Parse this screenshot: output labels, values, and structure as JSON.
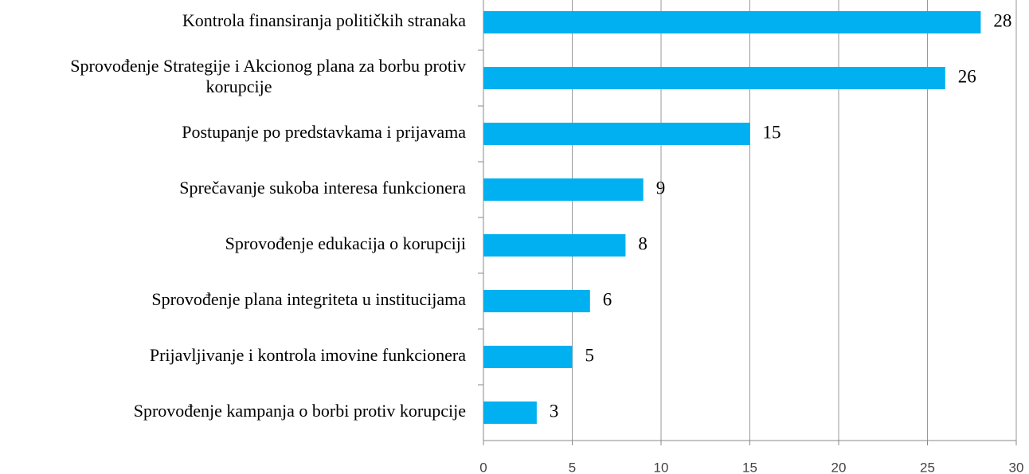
{
  "chart_data": {
    "type": "barh",
    "categories": [
      "Kontrola finansiranja političkih stranaka",
      "Sprovođenje Strategije i Akcionog plana za borbu protiv korupcije",
      "Postupanje po predstavkama i prijavama",
      "Sprečavanje sukoba interesa funkcionera",
      "Sprovođenje edukacija o korupciji",
      "Sprovođenje plana integriteta u institucijama",
      "Prijavljivanje i kontrola imovine funkcionera",
      "Sprovođenje kampanja o borbi protiv korupcije"
    ],
    "values": [
      28,
      26,
      15,
      9,
      8,
      6,
      5,
      3
    ],
    "color": "#00b0f0",
    "xlim": [
      0,
      30
    ],
    "xticks": [
      0,
      5,
      10,
      15,
      20,
      25,
      30
    ],
    "grid": true
  }
}
